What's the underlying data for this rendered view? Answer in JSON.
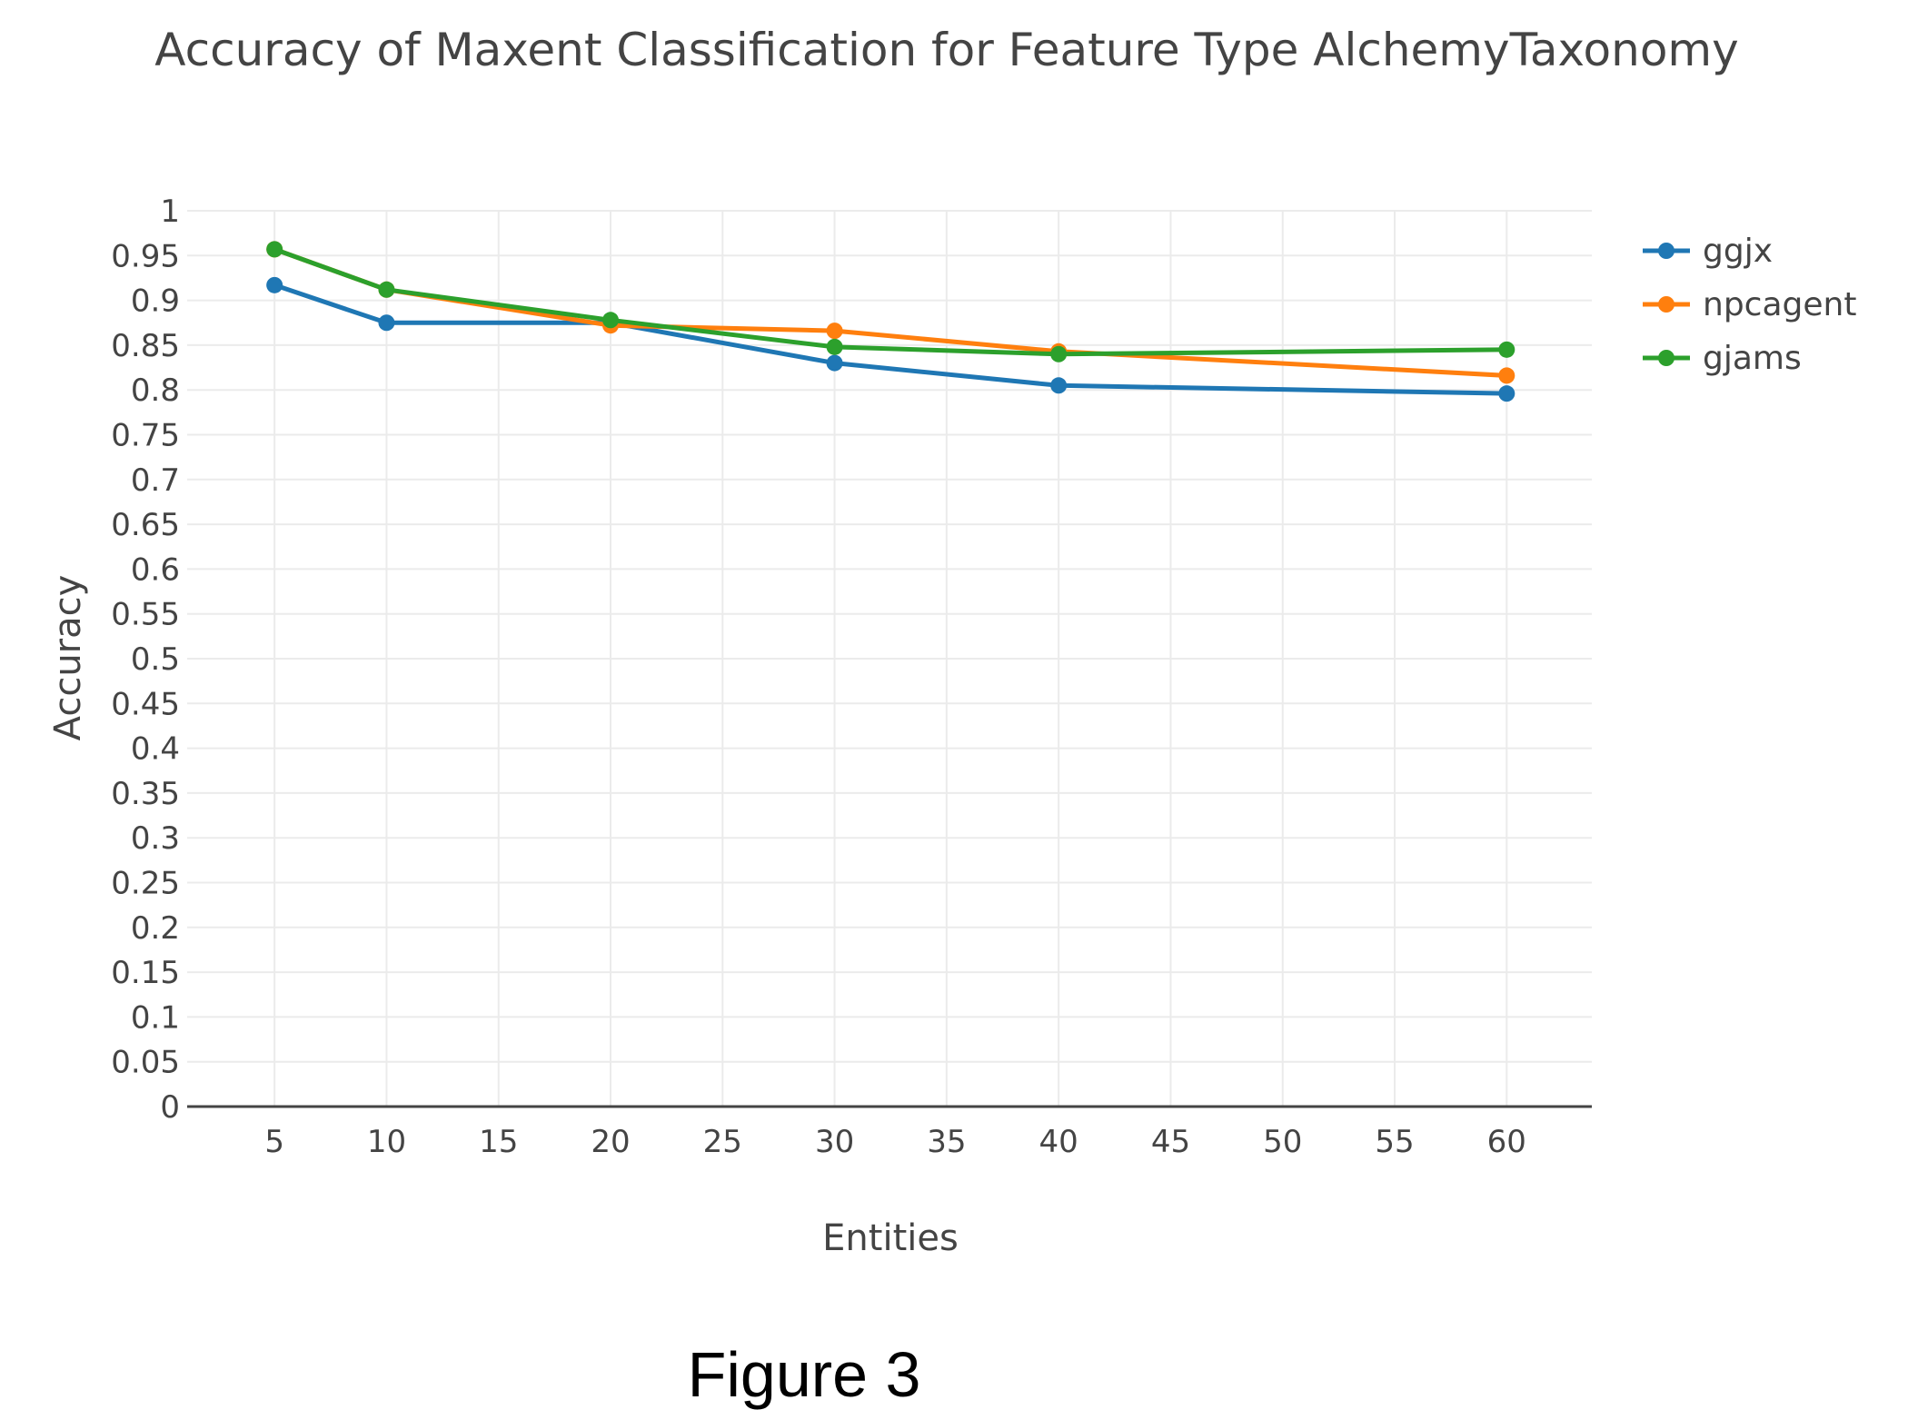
{
  "chart_data": {
    "type": "line",
    "title": "Accuracy of Maxent Classification for Feature Type AlchemyTaxonomy",
    "xlabel": "Entities",
    "ylabel": "Accuracy",
    "x_ticks": [
      5,
      10,
      15,
      20,
      25,
      30,
      35,
      40,
      45,
      50,
      55,
      60
    ],
    "x_tick_labels": [
      "5",
      "10",
      "15",
      "20",
      "25",
      "30",
      "35",
      "40",
      "45",
      "50",
      "55",
      "60"
    ],
    "y_ticks": [
      0,
      0.05,
      0.1,
      0.15,
      0.2,
      0.25,
      0.3,
      0.35,
      0.4,
      0.45,
      0.5,
      0.55,
      0.6,
      0.65,
      0.7,
      0.75,
      0.8,
      0.85,
      0.9,
      0.95,
      1
    ],
    "y_tick_labels": [
      "0",
      "0.05",
      "0.1",
      "0.15",
      "0.2",
      "0.25",
      "0.3",
      "0.35",
      "0.4",
      "0.45",
      "0.5",
      "0.55",
      "0.6",
      "0.65",
      "0.7",
      "0.75",
      "0.8",
      "0.85",
      "0.9",
      "0.95",
      "1"
    ],
    "xlim": [
      1.1,
      63.8
    ],
    "ylim": [
      0,
      1
    ],
    "grid": true,
    "legend_position": "top-right",
    "series": [
      {
        "name": "ggjx",
        "color": "#1f77b4",
        "x": [
          5,
          10,
          20,
          30,
          40,
          60
        ],
        "y": [
          0.917,
          0.875,
          0.875,
          0.83,
          0.805,
          0.796
        ]
      },
      {
        "name": "npcagent",
        "color": "#ff7f0e",
        "x": [
          5,
          10,
          20,
          30,
          40,
          60
        ],
        "y": [
          0.957,
          0.912,
          0.872,
          0.866,
          0.843,
          0.816
        ]
      },
      {
        "name": "gjams",
        "color": "#2ca02c",
        "x": [
          5,
          10,
          20,
          30,
          40,
          60
        ],
        "y": [
          0.957,
          0.912,
          0.878,
          0.848,
          0.84,
          0.845
        ]
      }
    ]
  },
  "figure_caption": "Figure 3"
}
